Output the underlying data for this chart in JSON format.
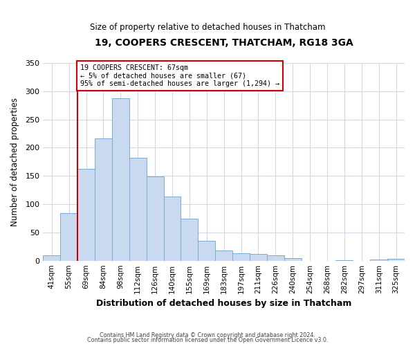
{
  "title": "19, COOPERS CRESCENT, THATCHAM, RG18 3GA",
  "subtitle": "Size of property relative to detached houses in Thatcham",
  "xlabel": "Distribution of detached houses by size in Thatcham",
  "ylabel": "Number of detached properties",
  "bar_labels": [
    "41sqm",
    "55sqm",
    "69sqm",
    "84sqm",
    "98sqm",
    "112sqm",
    "126sqm",
    "140sqm",
    "155sqm",
    "169sqm",
    "183sqm",
    "197sqm",
    "211sqm",
    "226sqm",
    "240sqm",
    "254sqm",
    "268sqm",
    "282sqm",
    "297sqm",
    "311sqm",
    "325sqm"
  ],
  "bar_values": [
    10,
    84,
    163,
    216,
    287,
    182,
    149,
    113,
    74,
    35,
    18,
    13,
    12,
    9,
    5,
    0,
    0,
    1,
    0,
    2,
    3
  ],
  "bar_color": "#c9d9f0",
  "bar_edge_color": "#7aaad4",
  "ylim": [
    0,
    350
  ],
  "yticks": [
    0,
    50,
    100,
    150,
    200,
    250,
    300,
    350
  ],
  "property_line_color": "#cc0000",
  "annotation_text": "19 COOPERS CRESCENT: 67sqm\n← 5% of detached houses are smaller (67)\n95% of semi-detached houses are larger (1,294) →",
  "annotation_box_color": "#ffffff",
  "annotation_box_edge_color": "#cc0000",
  "footer_line1": "Contains HM Land Registry data © Crown copyright and database right 2024.",
  "footer_line2": "Contains public sector information licensed under the Open Government Licence v3.0.",
  "background_color": "#ffffff",
  "grid_color": "#d0d8e8"
}
